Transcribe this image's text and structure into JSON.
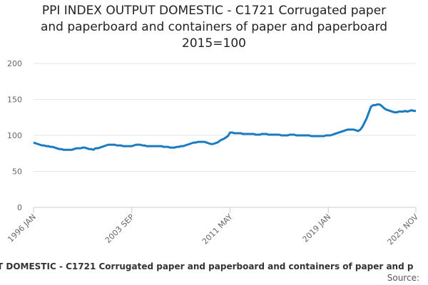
{
  "chart_data": {
    "type": "line",
    "title": [
      "PPI INDEX OUTPUT DOMESTIC - C1721 Corrugated paper",
      "and paperboard and containers of paper and paperboard",
      "2015=100"
    ],
    "footer_title": "T DOMESTIC - C1721 Corrugated paper and paperboard and containers of paper and p",
    "source": "Source:",
    "color": "#1a7bc1",
    "ylim": [
      0,
      200
    ],
    "yticks": [
      0,
      50,
      100,
      150,
      200
    ],
    "grid": true,
    "categories": [
      "1996 JAN",
      null,
      null,
      null,
      null,
      null,
      null,
      null,
      null,
      null,
      null,
      null,
      null,
      null,
      null,
      null,
      null,
      null,
      null,
      null,
      null,
      null,
      null,
      null,
      null,
      null,
      null,
      null,
      null,
      null,
      null,
      null,
      null,
      null,
      null,
      null,
      null,
      null,
      null,
      null,
      null,
      null,
      null,
      null,
      null,
      null,
      "2003 SEP",
      null,
      null,
      null,
      null,
      null,
      null,
      null,
      null,
      null,
      null,
      null,
      null,
      null,
      null,
      null,
      null,
      null,
      null,
      null,
      null,
      null,
      null,
      null,
      null,
      null,
      null,
      null,
      null,
      null,
      null,
      null,
      null,
      null,
      null,
      null,
      null,
      null,
      null,
      null,
      null,
      null,
      null,
      null,
      null,
      null,
      "2011 MAY",
      null,
      null,
      null,
      null,
      null,
      null,
      null,
      null,
      null,
      null,
      null,
      null,
      null,
      null,
      null,
      null,
      null,
      null,
      null,
      null,
      null,
      null,
      null,
      null,
      null,
      null,
      null,
      null,
      null,
      null,
      null,
      null,
      null,
      null,
      null,
      null,
      null,
      null,
      null,
      null,
      null,
      null,
      null,
      null,
      null,
      "2019 JAN",
      null,
      null,
      null,
      null,
      null,
      null,
      null,
      null,
      null,
      null,
      null,
      null,
      null,
      null,
      null,
      null,
      null,
      null,
      null,
      null,
      null,
      null,
      null,
      null,
      null,
      null,
      null,
      null,
      null,
      null,
      null,
      null,
      null,
      null,
      null,
      null,
      null,
      null,
      null,
      null,
      "2025 NOV"
    ],
    "values": [
      90,
      89,
      88,
      87,
      86,
      86,
      85,
      85,
      84,
      84,
      83,
      82,
      81,
      81,
      80,
      80,
      80,
      80,
      80,
      81,
      82,
      82,
      82,
      83,
      83,
      82,
      81,
      81,
      80,
      82,
      82,
      83,
      84,
      85,
      86,
      87,
      87,
      87,
      87,
      86,
      86,
      86,
      85,
      85,
      85,
      85,
      85,
      86,
      87,
      87,
      87,
      86,
      86,
      85,
      85,
      85,
      85,
      85,
      85,
      85,
      85,
      84,
      84,
      84,
      83,
      83,
      83,
      84,
      84,
      85,
      85,
      86,
      87,
      88,
      89,
      90,
      90,
      91,
      91,
      91,
      91,
      90,
      89,
      88,
      88,
      89,
      90,
      92,
      94,
      95,
      97,
      99,
      104,
      104,
      103,
      103,
      103,
      103,
      102,
      102,
      102,
      102,
      102,
      102,
      101,
      101,
      101,
      102,
      102,
      102,
      101,
      101,
      101,
      101,
      101,
      101,
      100,
      100,
      100,
      100,
      101,
      101,
      101,
      100,
      100,
      100,
      100,
      100,
      100,
      100,
      99,
      99,
      99,
      99,
      99,
      99,
      99,
      100,
      100,
      100,
      101,
      102,
      103,
      104,
      105,
      106,
      107,
      108,
      108,
      108,
      108,
      107,
      106,
      108,
      112,
      118,
      124,
      132,
      140,
      142,
      142,
      143,
      143,
      141,
      138,
      136,
      135,
      134,
      133,
      132,
      132,
      133,
      133,
      133,
      134,
      133,
      134,
      135,
      134,
      134
    ]
  }
}
